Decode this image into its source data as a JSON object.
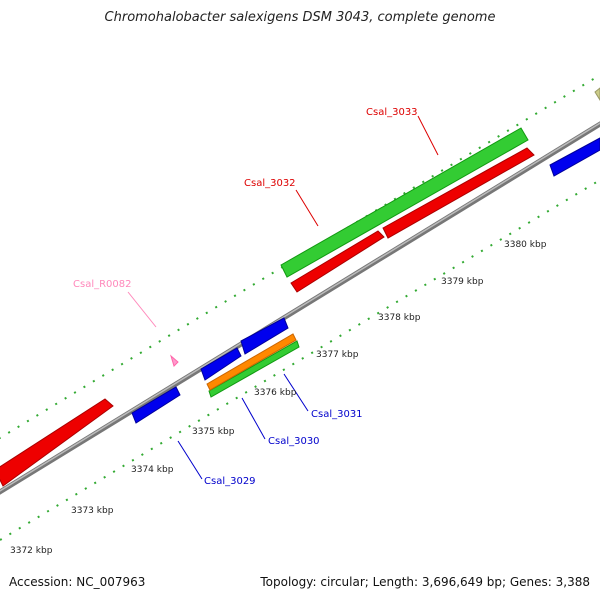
{
  "title": "Chromohalobacter salexigens DSM 3043, complete genome",
  "footer": {
    "accession": "Accession: NC_007963",
    "topology": "Topology: circular; Length: 3,696,649 bp; Genes: 3,388"
  },
  "scale": {
    "labels": [
      "3372 kbp",
      "3373 kbp",
      "3374 kbp",
      "3375 kbp",
      "3376 kbp",
      "3377 kbp",
      "3378 kbp",
      "3379 kbp",
      "3380 kbp"
    ]
  },
  "genes": [
    {
      "name": "Csal_3033",
      "color": "#dd0000"
    },
    {
      "name": "Csal_3032",
      "color": "#dd0000"
    },
    {
      "name": "Csal_R0082",
      "color": "#ff88bb"
    },
    {
      "name": "Csal_3031",
      "color": "#0000cc"
    },
    {
      "name": "Csal_3030",
      "color": "#0000cc"
    },
    {
      "name": "Csal_3029",
      "color": "#0000cc"
    }
  ],
  "colors": {
    "forward_cds": "#ff0000",
    "reverse_cds": "#0000ee",
    "rna": "#ff99cc",
    "green_track": "#22cc22",
    "orange_track": "#ff8800",
    "tick_dark": "#006600",
    "tick_light": "#33aa33",
    "backbone": "#888888"
  }
}
